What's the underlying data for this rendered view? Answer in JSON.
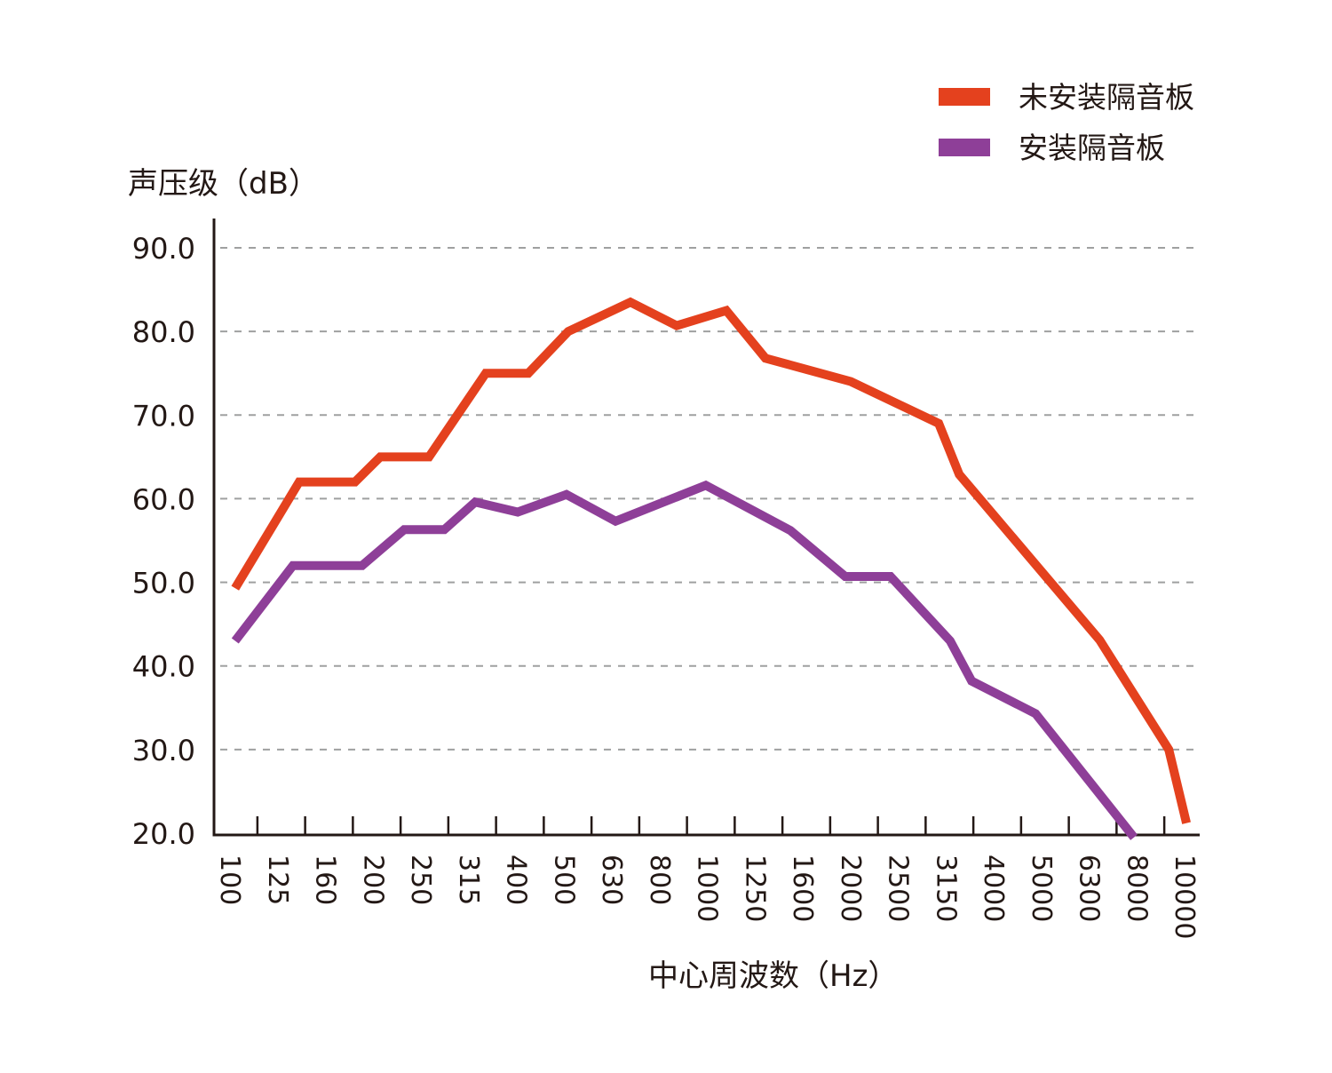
{
  "chart_data": {
    "type": "line",
    "title": "",
    "ylabel": "声压级（dB）",
    "xlabel": "中心周波数（Hz）",
    "ylim": [
      20,
      90
    ],
    "yticks": [
      "20.0",
      "30.0",
      "40.0",
      "50.0",
      "60.0",
      "70.0",
      "80.0",
      "90.0"
    ],
    "ytick_values": [
      20,
      30,
      40,
      50,
      60,
      70,
      80,
      90
    ],
    "grid": true,
    "grid_style": "dashed-horizontal",
    "categories": [
      "100",
      "125",
      "160",
      "200",
      "250",
      "315",
      "400",
      "500",
      "630",
      "800",
      "1000",
      "1250",
      "1600",
      "2000",
      "2500",
      "3150",
      "4000",
      "5000",
      "6300",
      "8000",
      "10000"
    ],
    "xtick_label_rotation": "vertical",
    "legend_position": "top-right",
    "series": [
      {
        "name": "未安装隔音板",
        "color": "#e4411e",
        "points": [
          {
            "x": 0.09,
            "y": 49.3
          },
          {
            "x": 1.43,
            "y": 62.0
          },
          {
            "x": 2.6,
            "y": 62.0
          },
          {
            "x": 3.13,
            "y": 65.0
          },
          {
            "x": 4.15,
            "y": 65.0
          },
          {
            "x": 5.34,
            "y": 75.0
          },
          {
            "x": 6.23,
            "y": 75.0
          },
          {
            "x": 7.07,
            "y": 80.0
          },
          {
            "x": 8.37,
            "y": 83.5
          },
          {
            "x": 9.34,
            "y": 80.7
          },
          {
            "x": 10.38,
            "y": 82.5
          },
          {
            "x": 11.2,
            "y": 76.8
          },
          {
            "x": 12.99,
            "y": 74.0
          },
          {
            "x": 14.83,
            "y": 69.0
          },
          {
            "x": 15.26,
            "y": 62.9
          },
          {
            "x": 18.2,
            "y": 43.1
          },
          {
            "x": 19.65,
            "y": 30.0
          },
          {
            "x": 20.02,
            "y": 21.2
          }
        ]
      },
      {
        "name": "安装隔音板",
        "color": "#8e3f98",
        "points": [
          {
            "x": 0.09,
            "y": 43.0
          },
          {
            "x": 1.3,
            "y": 52.0
          },
          {
            "x": 2.75,
            "y": 52.0
          },
          {
            "x": 3.63,
            "y": 56.3
          },
          {
            "x": 4.47,
            "y": 56.3
          },
          {
            "x": 5.12,
            "y": 59.6
          },
          {
            "x": 6.01,
            "y": 58.4
          },
          {
            "x": 7.03,
            "y": 60.5
          },
          {
            "x": 8.06,
            "y": 57.3
          },
          {
            "x": 9.95,
            "y": 61.6
          },
          {
            "x": 11.72,
            "y": 56.2
          },
          {
            "x": 12.87,
            "y": 50.7
          },
          {
            "x": 13.82,
            "y": 50.7
          },
          {
            "x": 15.07,
            "y": 43.0
          },
          {
            "x": 15.52,
            "y": 38.2
          },
          {
            "x": 16.86,
            "y": 34.3
          },
          {
            "x": 18.92,
            "y": 19.5
          }
        ]
      }
    ]
  }
}
